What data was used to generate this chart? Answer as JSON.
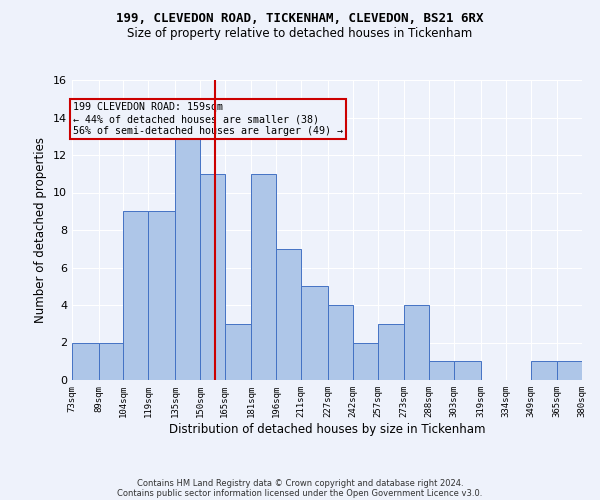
{
  "title1": "199, CLEVEDON ROAD, TICKENHAM, CLEVEDON, BS21 6RX",
  "title2": "Size of property relative to detached houses in Tickenham",
  "xlabel": "Distribution of detached houses by size in Tickenham",
  "ylabel": "Number of detached properties",
  "footnote1": "Contains HM Land Registry data © Crown copyright and database right 2024.",
  "footnote2": "Contains public sector information licensed under the Open Government Licence v3.0.",
  "bins": [
    73,
    89,
    104,
    119,
    135,
    150,
    165,
    181,
    196,
    211,
    227,
    242,
    257,
    273,
    288,
    303,
    319,
    334,
    349,
    365,
    380
  ],
  "counts": [
    2,
    2,
    9,
    9,
    13,
    11,
    3,
    11,
    7,
    5,
    4,
    2,
    3,
    4,
    1,
    1,
    0,
    0,
    1,
    1
  ],
  "bar_color": "#aec6e8",
  "bar_edge_color": "#4472c4",
  "vline_x": 159,
  "vline_color": "#cc0000",
  "annotation_line1": "199 CLEVEDON ROAD: 159sqm",
  "annotation_line2": "← 44% of detached houses are smaller (38)",
  "annotation_line3": "56% of semi-detached houses are larger (49) →",
  "annotation_box_color": "#cc0000",
  "ylim": [
    0,
    16
  ],
  "yticks": [
    0,
    2,
    4,
    6,
    8,
    10,
    12,
    14,
    16
  ],
  "bg_color": "#eef2fb",
  "grid_color": "#ffffff"
}
